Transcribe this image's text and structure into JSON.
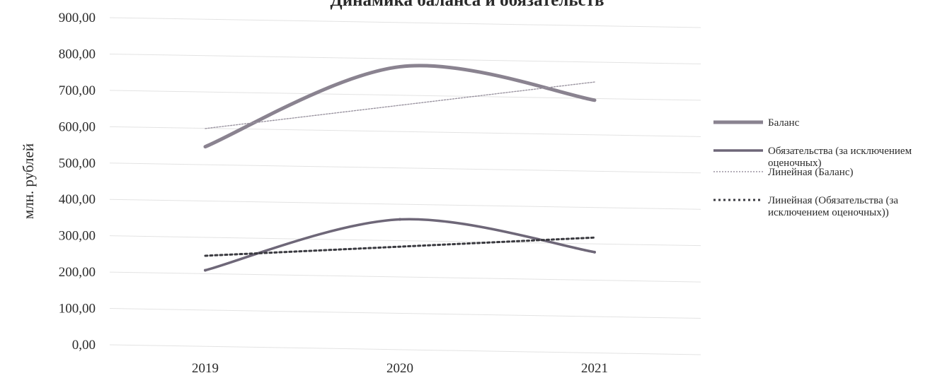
{
  "chart_data": {
    "type": "line",
    "title": "Динамика баланса и обязательств",
    "ylabel": "млн. рублей",
    "categories": [
      "2019",
      "2020",
      "2021"
    ],
    "ylim": [
      0,
      900
    ],
    "yticks": [
      "0,00",
      "100,00",
      "200,00",
      "300,00",
      "400,00",
      "500,00",
      "600,00",
      "700,00",
      "800,00",
      "900,00"
    ],
    "grid": true,
    "legend_position": "right",
    "series": [
      {
        "name": "Баланс",
        "values": [
          545,
          765,
          673
        ],
        "style": "thick-smooth",
        "color": "#8a8390"
      },
      {
        "name": "Обязательства (за исключением оценочных)",
        "values": [
          205,
          345,
          255
        ],
        "style": "smooth",
        "color": "#6e6778"
      },
      {
        "name": "Линейная (Баланс)",
        "values": [
          595,
          659,
          723
        ],
        "style": "dotted-thin",
        "color": "#9a94a0"
      },
      {
        "name": "Линейная (Обязательства (за исключением оценочных))",
        "values": [
          245,
          270,
          295
        ],
        "style": "dotted-thick",
        "color": "#3a3a40"
      }
    ],
    "legend_lines": [
      [
        "Баланс"
      ],
      [
        "Обязательства (за исключением",
        "оценочных)"
      ],
      [
        "Линейная (Баланс)"
      ],
      [
        "Линейная (Обязательства (за",
        "исключением оценочных))"
      ]
    ]
  }
}
